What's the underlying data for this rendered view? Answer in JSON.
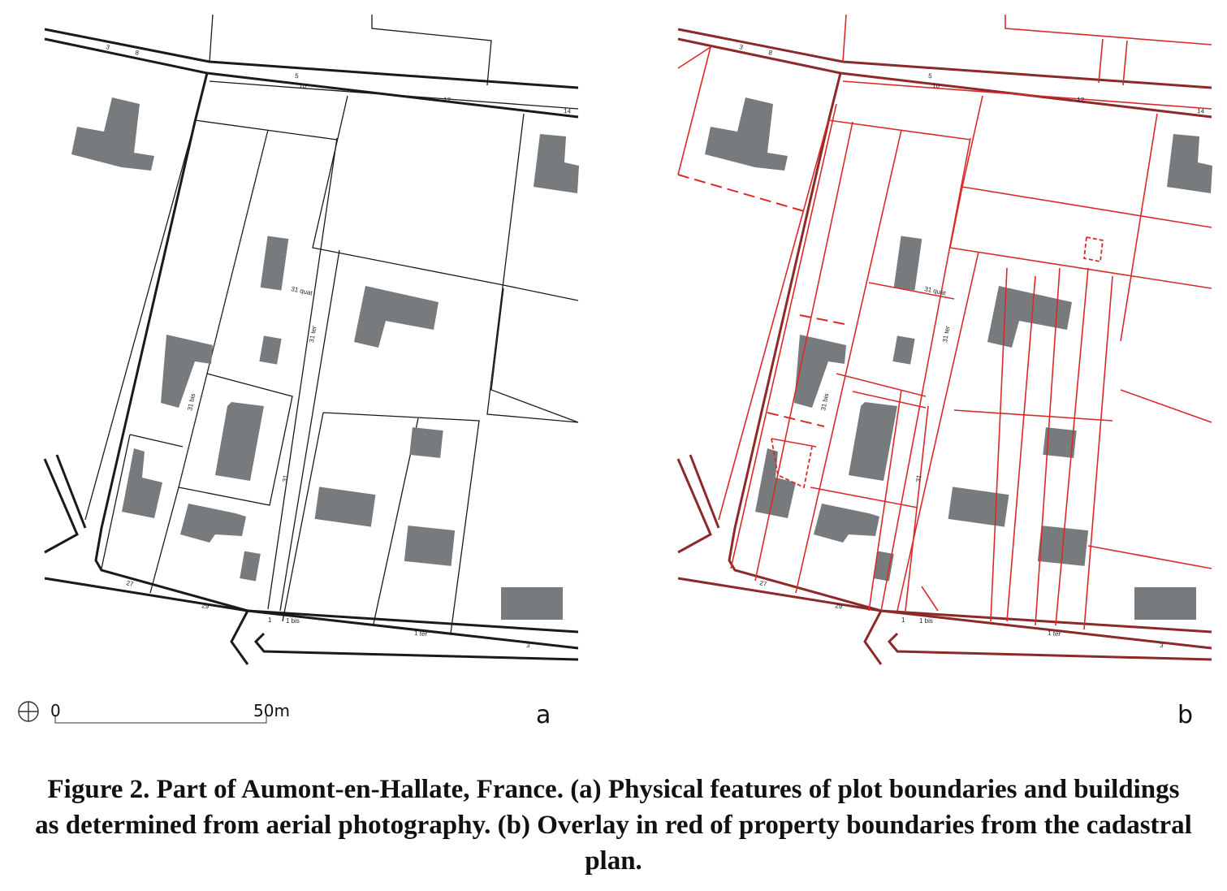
{
  "panels": {
    "a": {
      "letter": "a"
    },
    "b": {
      "letter": "b"
    }
  },
  "addresses": {
    "n3": "3",
    "n8": "8",
    "n5": "5",
    "n10": "10",
    "n12": "12",
    "n14": "14",
    "n31quat": "31 quat",
    "n31ter": "31 ter",
    "n31bis": "31 bis",
    "n31": "31",
    "n27": "27",
    "n29": "29",
    "n1": "1",
    "n1bis": "1 bis",
    "n1ter": "1 ter",
    "n3s": "3"
  },
  "scale_bar": {
    "start_label": "0",
    "end_label": "50m"
  },
  "caption": {
    "text": "Figure 2. Part of Aumont-en-Hallate, France. (a) Physical features of plot boundaries and buildings as determined from aerial photography. (b) Overlay in red of property boundaries from the cadastral plan."
  },
  "colors": {
    "building": "#777b7d",
    "physical_boundary": "#1a1a1a",
    "cadastral_boundary": "#d92a2a",
    "road_edge_overlay": "#8c2a2a"
  }
}
